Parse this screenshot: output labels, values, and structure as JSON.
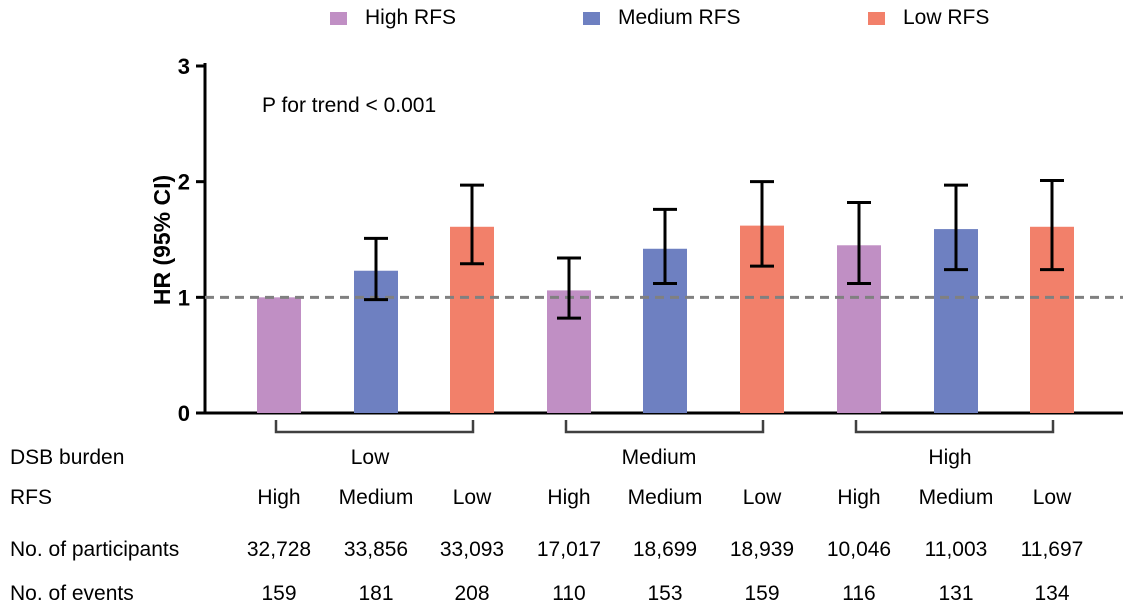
{
  "legend": [
    {
      "label": "High RFS",
      "color": "#c08fc4"
    },
    {
      "label": "Medium RFS",
      "color": "#6e80c1"
    },
    {
      "label": "Low RFS",
      "color": "#f2806a"
    }
  ],
  "chart_data": {
    "type": "bar",
    "ylabel": "HR (95% CI)",
    "ylim": [
      0,
      3
    ],
    "yticks": [
      "0",
      "1",
      "2",
      "3"
    ],
    "reference_line": 1,
    "annotation": "P for trend < 0.001",
    "groups": [
      "Low",
      "Medium",
      "High"
    ],
    "group_axis_label": "DSB burden",
    "bars": [
      {
        "group": "Low",
        "rfs": "High",
        "value": 1.0,
        "lower": null,
        "upper": null
      },
      {
        "group": "Low",
        "rfs": "Medium",
        "value": 1.23,
        "lower": 0.98,
        "upper": 1.51
      },
      {
        "group": "Low",
        "rfs": "Low",
        "value": 1.61,
        "lower": 1.29,
        "upper": 1.97
      },
      {
        "group": "Medium",
        "rfs": "High",
        "value": 1.06,
        "lower": 0.82,
        "upper": 1.34
      },
      {
        "group": "Medium",
        "rfs": "Medium",
        "value": 1.42,
        "lower": 1.12,
        "upper": 1.76
      },
      {
        "group": "Medium",
        "rfs": "Low",
        "value": 1.62,
        "lower": 1.27,
        "upper": 2.0
      },
      {
        "group": "High",
        "rfs": "High",
        "value": 1.45,
        "lower": 1.12,
        "upper": 1.82
      },
      {
        "group": "High",
        "rfs": "Medium",
        "value": 1.59,
        "lower": 1.24,
        "upper": 1.97
      },
      {
        "group": "High",
        "rfs": "Low",
        "value": 1.61,
        "lower": 1.24,
        "upper": 2.01
      }
    ]
  },
  "table": {
    "labels": {
      "dsb": "DSB burden",
      "rfs": "RFS",
      "participants": "No. of participants",
      "events": "No. of events"
    },
    "rfs": [
      "High",
      "Medium",
      "Low",
      "High",
      "Medium",
      "Low",
      "High",
      "Medium",
      "Low"
    ],
    "participants": [
      "32,728",
      "33,856",
      "33,093",
      "17,017",
      "18,699",
      "18,939",
      "10,046",
      "11,003",
      "11,697"
    ],
    "events": [
      "159",
      "181",
      "208",
      "110",
      "153",
      "159",
      "116",
      "131",
      "134"
    ]
  }
}
